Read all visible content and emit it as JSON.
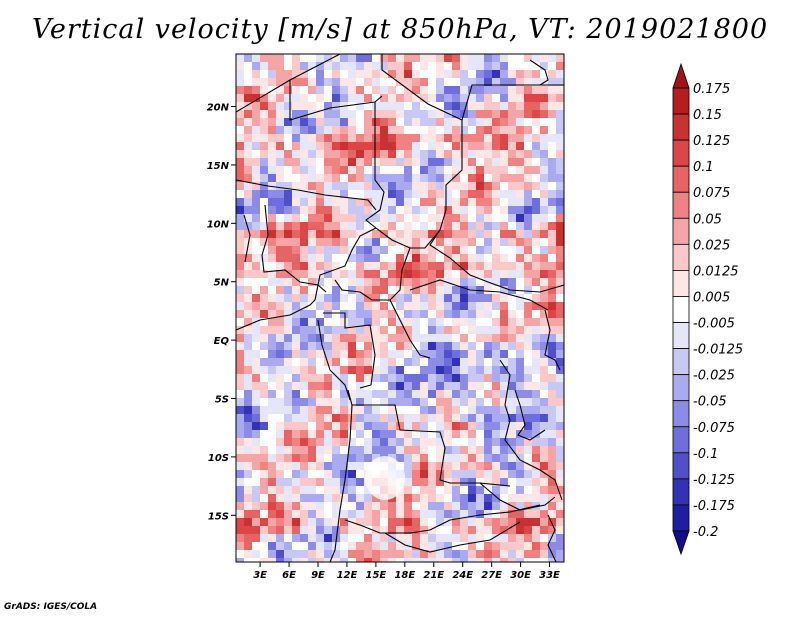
{
  "title": "Vertical velocity [m/s] at 850hPa, VT: 2019021800",
  "footer": "GrADS: IGES/COLA",
  "map": {
    "lat_range": [
      -19,
      24.5
    ],
    "lon_range": [
      0.5,
      34.5
    ],
    "lat_ticks": [
      {
        "value": 20,
        "label": "20N"
      },
      {
        "value": 15,
        "label": "15N"
      },
      {
        "value": 10,
        "label": "10N"
      },
      {
        "value": 5,
        "label": "5N"
      },
      {
        "value": 0,
        "label": "EQ"
      },
      {
        "value": -5,
        "label": "5S"
      },
      {
        "value": -10,
        "label": "10S"
      },
      {
        "value": -15,
        "label": "15S"
      }
    ],
    "lon_ticks": [
      {
        "value": 3,
        "label": "3E"
      },
      {
        "value": 6,
        "label": "6E"
      },
      {
        "value": 9,
        "label": "9E"
      },
      {
        "value": 12,
        "label": "12E"
      },
      {
        "value": 15,
        "label": "15E"
      },
      {
        "value": 18,
        "label": "18E"
      },
      {
        "value": 21,
        "label": "21E"
      },
      {
        "value": 24,
        "label": "24E"
      },
      {
        "value": 27,
        "label": "27E"
      },
      {
        "value": 30,
        "label": "30E"
      },
      {
        "value": 33,
        "label": "33E"
      }
    ],
    "colors": {
      "border": "#000000",
      "frame": "#000000"
    }
  },
  "colorbar": {
    "levels": [
      "0.175",
      "0.15",
      "0.125",
      "0.1",
      "0.075",
      "0.05",
      "0.025",
      "0.0125",
      "0.005",
      "-0.005",
      "-0.0125",
      "-0.025",
      "-0.05",
      "-0.075",
      "-0.1",
      "-0.125",
      "-0.175",
      "-0.2"
    ],
    "colors": [
      "#a01414",
      "#b41e1e",
      "#c83232",
      "#dc4646",
      "#e66464",
      "#f08282",
      "#f5a5a5",
      "#fac8c8",
      "#fde6e6",
      "#ffffff",
      "#e6e6fa",
      "#c8c8f5",
      "#aaaaf0",
      "#8c8ce6",
      "#6e6edc",
      "#5050c8",
      "#3232b4",
      "#1e1ea0",
      "#140a8c"
    ]
  }
}
